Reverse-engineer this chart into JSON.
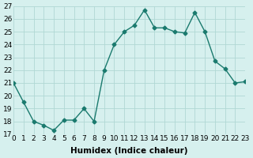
{
  "x": [
    0,
    1,
    2,
    3,
    4,
    5,
    6,
    7,
    8,
    9,
    10,
    11,
    12,
    13,
    14,
    15,
    16,
    17,
    18,
    19,
    20,
    21,
    22,
    23
  ],
  "y": [
    21,
    19.5,
    18,
    17.7,
    17.3,
    18.1,
    18.1,
    19,
    18,
    22,
    24,
    25,
    25.5,
    26.7,
    25.3,
    25.3,
    25,
    24.9,
    26.5,
    25,
    22.7,
    22.1,
    21,
    21.1
  ],
  "line_color": "#1a7a6e",
  "marker": "D",
  "marker_size": 2.5,
  "bg_color": "#d6f0ee",
  "grid_color": "#b0d8d4",
  "xlabel": "Humidex (Indice chaleur)",
  "ylim": [
    17,
    27
  ],
  "xlim": [
    0,
    23
  ],
  "yticks": [
    17,
    18,
    19,
    20,
    21,
    22,
    23,
    24,
    25,
    26,
    27
  ],
  "xticks": [
    0,
    1,
    2,
    3,
    4,
    5,
    6,
    7,
    8,
    9,
    10,
    11,
    12,
    13,
    14,
    15,
    16,
    17,
    18,
    19,
    20,
    21,
    22,
    23
  ],
  "tick_fontsize": 6.5,
  "label_fontsize": 7.5
}
